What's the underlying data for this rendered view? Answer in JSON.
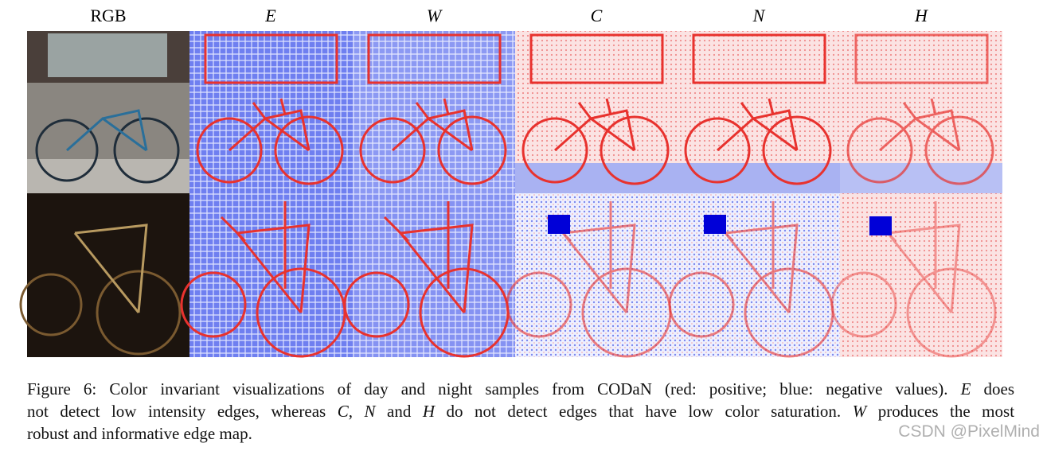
{
  "figure": {
    "column_headers": [
      "RGB",
      "E",
      "W",
      "C",
      "N",
      "H"
    ],
    "caption": {
      "lines": [
        [
          "Figure 6: Color invariant visualizations of day and night samples from CODaN (red: positive; blue: negative values). ",
          "E",
          " does"
        ],
        [
          "not detect low intensity edges, whereas ",
          "C",
          ", ",
          "N",
          " and ",
          "H",
          " do not detect edges that have low color saturation. ",
          "W",
          " produces the most"
        ],
        [
          "robust and informative edge map."
        ]
      ]
    },
    "watermark": "CSDN @PixelMind"
  }
}
